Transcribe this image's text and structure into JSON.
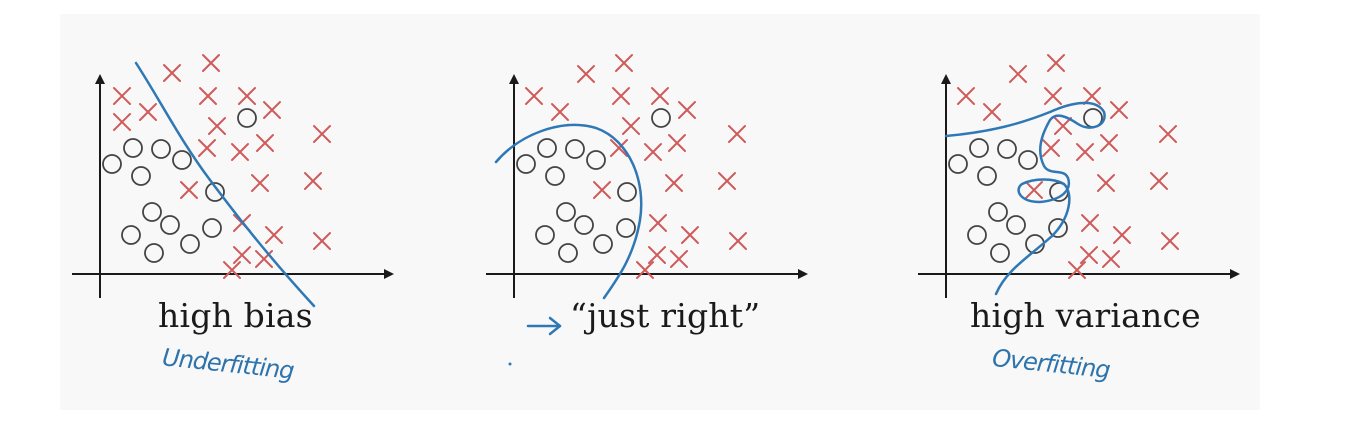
{
  "panels": [
    {
      "id": "high-bias",
      "title": "high bias",
      "note": "Underfitting",
      "crosses": [
        [
          122,
          96
        ],
        [
          172,
          73
        ],
        [
          211,
          63
        ],
        [
          208,
          96
        ],
        [
          247,
          96
        ],
        [
          122,
          122
        ],
        [
          148,
          112
        ],
        [
          217,
          126
        ],
        [
          272,
          110
        ],
        [
          265,
          143
        ],
        [
          240,
          152
        ],
        [
          207,
          148
        ],
        [
          322,
          134
        ],
        [
          260,
          183
        ],
        [
          313,
          181
        ],
        [
          189,
          190
        ],
        [
          242,
          223
        ],
        [
          274,
          235
        ],
        [
          322,
          241
        ],
        [
          242,
          255
        ],
        [
          264,
          259
        ],
        [
          232,
          270
        ]
      ],
      "circles": [
        [
          247,
          118
        ],
        [
          133,
          148
        ],
        [
          161,
          149
        ],
        [
          182,
          160
        ],
        [
          112,
          164
        ],
        [
          141,
          176
        ],
        [
          215,
          192
        ],
        [
          152,
          212
        ],
        [
          170,
          225
        ],
        [
          212,
          228
        ],
        [
          131,
          235
        ],
        [
          190,
          244
        ],
        [
          154,
          253
        ]
      ]
    },
    {
      "id": "just-right",
      "title": "“just right”",
      "note": "",
      "crosses": [
        [
          586,
          74
        ],
        [
          624,
          63
        ],
        [
          621,
          96
        ],
        [
          660,
          96
        ],
        [
          534,
          96
        ],
        [
          560,
          112
        ],
        [
          687,
          110
        ],
        [
          631,
          126
        ],
        [
          677,
          143
        ],
        [
          653,
          152
        ],
        [
          619,
          148
        ],
        [
          737,
          134
        ],
        [
          674,
          183
        ],
        [
          727,
          181
        ],
        [
          602,
          190
        ],
        [
          658,
          223
        ],
        [
          690,
          235
        ],
        [
          738,
          241
        ],
        [
          657,
          255
        ],
        [
          679,
          259
        ],
        [
          645,
          270
        ]
      ],
      "circles": [
        [
          661,
          118
        ],
        [
          547,
          148
        ],
        [
          575,
          149
        ],
        [
          596,
          160
        ],
        [
          526,
          164
        ],
        [
          555,
          176
        ],
        [
          627,
          192
        ],
        [
          566,
          212
        ],
        [
          584,
          225
        ],
        [
          626,
          228
        ],
        [
          545,
          235
        ],
        [
          603,
          244
        ],
        [
          568,
          253
        ]
      ]
    },
    {
      "id": "high-variance",
      "title": "high variance",
      "note": "Overfitting",
      "crosses": [
        [
          1018,
          74
        ],
        [
          1056,
          63
        ],
        [
          1053,
          96
        ],
        [
          1092,
          96
        ],
        [
          966,
          96
        ],
        [
          992,
          112
        ],
        [
          1119,
          110
        ],
        [
          1063,
          126
        ],
        [
          1109,
          143
        ],
        [
          1085,
          152
        ],
        [
          1051,
          148
        ],
        [
          1168,
          134
        ],
        [
          1106,
          183
        ],
        [
          1159,
          181
        ],
        [
          1034,
          190
        ],
        [
          1090,
          223
        ],
        [
          1122,
          235
        ],
        [
          1170,
          241
        ],
        [
          1089,
          255
        ],
        [
          1111,
          259
        ],
        [
          1077,
          270
        ]
      ],
      "circles": [
        [
          1093,
          118
        ],
        [
          979,
          148
        ],
        [
          1007,
          149
        ],
        [
          1028,
          160
        ],
        [
          958,
          164
        ],
        [
          987,
          176
        ],
        [
          1059,
          192
        ],
        [
          998,
          212
        ],
        [
          1016,
          225
        ],
        [
          1058,
          228
        ],
        [
          977,
          235
        ],
        [
          1035,
          244
        ],
        [
          1000,
          253
        ]
      ]
    }
  ],
  "colors": {
    "cross": "#cf5b5b",
    "circle": "#444444",
    "boundary": "#2f78b5",
    "axis": "#1a1a1a",
    "note": "#2d73ac"
  }
}
